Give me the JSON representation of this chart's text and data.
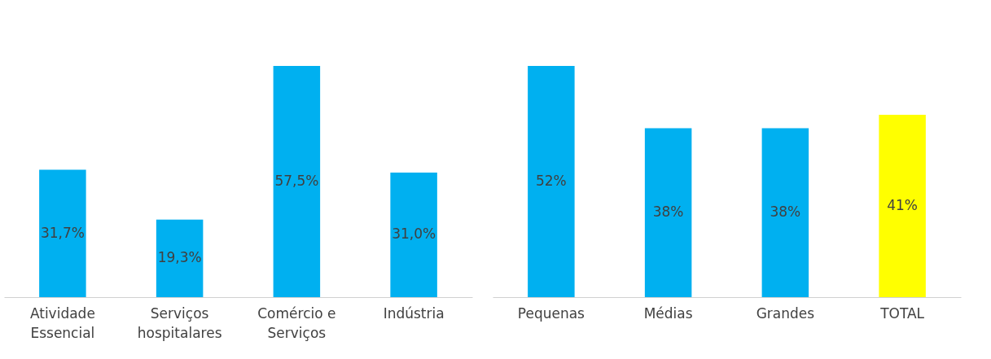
{
  "chart_data": [
    {
      "type": "bar",
      "categories": [
        "Atividade\nEssencial",
        "Serviços\nhospitalares",
        "Comércio e\nServiços",
        "Indústria"
      ],
      "values": [
        31.7,
        19.3,
        57.5,
        31.0
      ],
      "value_labels": [
        "31,7%",
        "19,3%",
        "57,5%",
        "31,0%"
      ],
      "colors": [
        "#00b0f0",
        "#00b0f0",
        "#00b0f0",
        "#00b0f0"
      ]
    },
    {
      "type": "bar",
      "categories": [
        "Pequenas",
        "Médias",
        "Grandes",
        "TOTAL"
      ],
      "values": [
        52,
        38,
        38,
        41
      ],
      "value_labels": [
        "52%",
        "38%",
        "38%",
        "41%"
      ],
      "colors": [
        "#00b0f0",
        "#00b0f0",
        "#00b0f0",
        "#ffff00"
      ]
    }
  ]
}
